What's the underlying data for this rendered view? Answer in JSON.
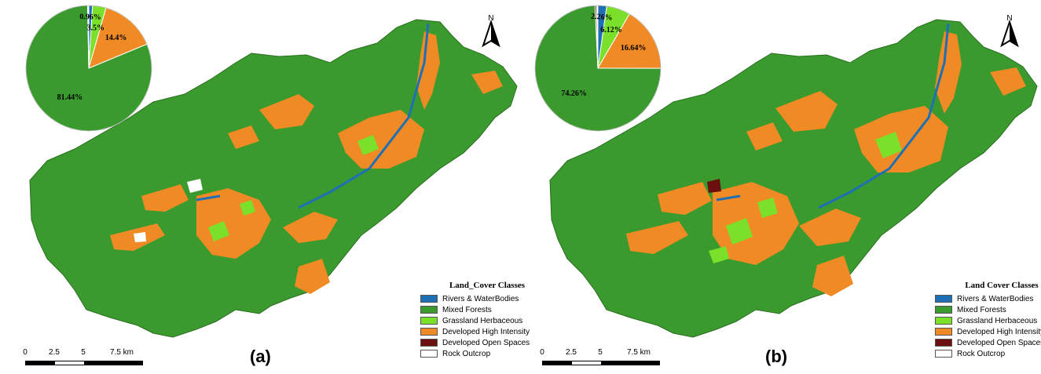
{
  "colors": {
    "rivers": "#1f6fb5",
    "forest": "#3a9a2e",
    "grassland": "#7be02a",
    "developed_high": "#f08a24",
    "developed_open": "#6b0f0f",
    "rock": "#ffffff"
  },
  "panels": [
    {
      "label": "(a)",
      "north": "N",
      "pie": {
        "slices": [
          {
            "class": "Rivers & WaterBodies",
            "value": 0.96,
            "color": "#1f6fb5",
            "label": "0.96%"
          },
          {
            "class": "Grassland Herbaceous",
            "value": 3.5,
            "color": "#7be02a",
            "label": "3.5%"
          },
          {
            "class": "Developed High Intensity",
            "value": 14.4,
            "color": "#f08a24",
            "label": "14.4%"
          },
          {
            "class": "Mixed Forests",
            "value": 81.44,
            "color": "#3a9a2e",
            "label": "81.44%"
          },
          {
            "class": "Developed Open Spaces",
            "value": 0.15,
            "color": "#6b0f0f",
            "label": ""
          },
          {
            "class": "Rock Outcrop",
            "value": 0.15,
            "color": "#ffffff",
            "label": ""
          }
        ]
      },
      "legend": {
        "title": "Land_Cover Classes",
        "items": [
          {
            "label": "Rivers & WaterBodies",
            "color": "#1f6fb5"
          },
          {
            "label": "Mixed Forests",
            "color": "#3a9a2e"
          },
          {
            "label": "Grassland Herbaceous",
            "color": "#7be02a"
          },
          {
            "label": "Developed High Intensity",
            "color": "#f08a24"
          },
          {
            "label": "Developed Open Spaces",
            "color": "#6b0f0f"
          },
          {
            "label": "Rock Outcrop",
            "color": "#ffffff"
          }
        ]
      },
      "scale": {
        "ticks": [
          "0",
          "2.5",
          "5",
          "7.5 km"
        ]
      }
    },
    {
      "label": "(b)",
      "north": "N",
      "pie": {
        "slices": [
          {
            "class": "Rivers & WaterBodies",
            "value": 2.26,
            "color": "#1f6fb5",
            "label": "2.26%"
          },
          {
            "class": "Grassland Herbaceous",
            "value": 6.12,
            "color": "#7be02a",
            "label": "6.12%"
          },
          {
            "class": "Developed High Intensity",
            "value": 16.64,
            "color": "#f08a24",
            "label": "16.64%"
          },
          {
            "class": "Mixed Forests",
            "value": 74.26,
            "color": "#3a9a2e",
            "label": "74.26%"
          },
          {
            "class": "Developed Open Spaces",
            "value": 0.4,
            "color": "#6b0f0f",
            "label": ""
          },
          {
            "class": "Rock Outcrop",
            "value": 0.32,
            "color": "#ffffff",
            "label": ""
          }
        ]
      },
      "legend": {
        "title": "Land Cover Classes",
        "items": [
          {
            "label": "Rivers & WaterBodies",
            "color": "#1f6fb5"
          },
          {
            "label": "Mixed Forests",
            "color": "#3a9a2e"
          },
          {
            "label": "Grassland Herbaceous",
            "color": "#7be02a"
          },
          {
            "label": "Developed High Intensity",
            "color": "#f08a24"
          },
          {
            "label": "Developed Open Spaces",
            "color": "#6b0f0f"
          },
          {
            "label": "Rock Outcrop",
            "color": "#ffffff"
          }
        ]
      },
      "scale": {
        "ticks": [
          "0",
          "2.5",
          "5",
          "7.5 km"
        ]
      }
    }
  ]
}
